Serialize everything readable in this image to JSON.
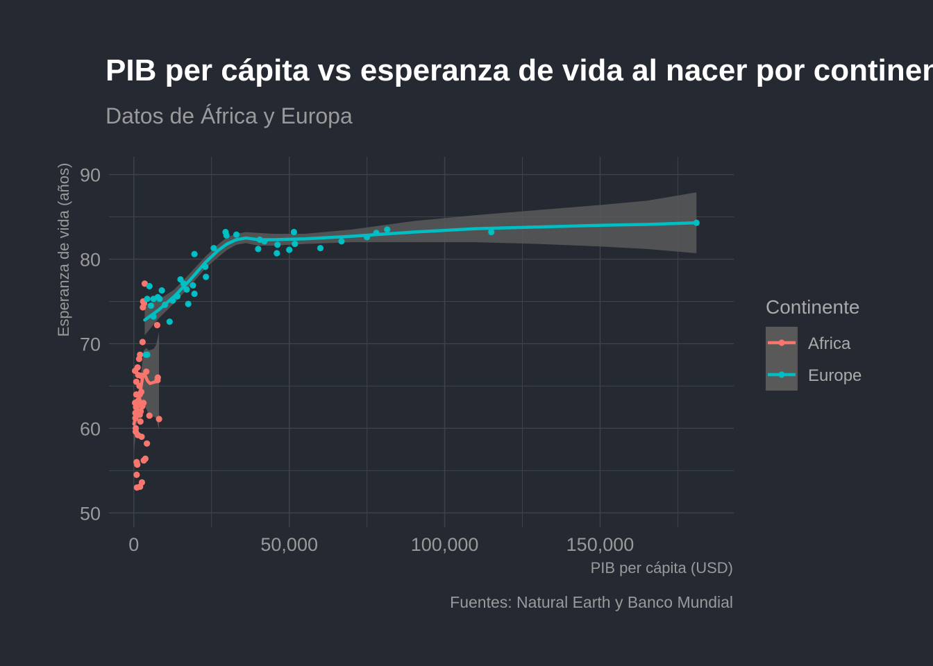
{
  "chart_data": {
    "type": "scatter",
    "title": "PIB per cápita vs esperanza de vida al nacer por continente",
    "subtitle": "Datos de África y Europa",
    "xlabel": "PIB per cápita  (USD)",
    "ylabel": "Esperanza de vida (años)",
    "caption": "Fuentes: Natural Earth y Banco Mundial",
    "xlim": [
      -8000,
      193000
    ],
    "ylim": [
      48.3,
      92.1
    ],
    "x_ticks": [
      0,
      50000,
      100000,
      150000
    ],
    "x_tick_labels": [
      "0",
      "50,000",
      "100,000",
      "150,000"
    ],
    "y_ticks": [
      50,
      60,
      70,
      80,
      90
    ],
    "y_tick_labels": [
      "50",
      "60",
      "70",
      "80",
      "90"
    ],
    "grid": true,
    "legend": {
      "title": "Continente",
      "position": "right"
    },
    "colors": {
      "background": "#252932",
      "grid": "#3e434c",
      "ribbon": "#595959",
      "Africa": "#f8766d",
      "Europe": "#00bfc4"
    },
    "series": [
      {
        "name": "Africa",
        "points": [
          [
            400,
            66.8
          ],
          [
            400,
            63.0
          ],
          [
            500,
            61.8
          ],
          [
            500,
            61.2
          ],
          [
            600,
            60.0
          ],
          [
            600,
            59.6
          ],
          [
            700,
            62.5
          ],
          [
            800,
            65.5
          ],
          [
            800,
            64.0
          ],
          [
            900,
            56.0
          ],
          [
            900,
            54.5
          ],
          [
            1000,
            53.0
          ],
          [
            1100,
            55.7
          ],
          [
            1200,
            67.2
          ],
          [
            1300,
            63.2
          ],
          [
            1300,
            59.2
          ],
          [
            1400,
            66.3
          ],
          [
            1500,
            63.3
          ],
          [
            1600,
            62.8
          ],
          [
            1700,
            68.2
          ],
          [
            1800,
            65.0
          ],
          [
            1900,
            64.0
          ],
          [
            1900,
            61.6
          ],
          [
            2000,
            68.7
          ],
          [
            2000,
            53.1
          ],
          [
            2100,
            60.8
          ],
          [
            2200,
            62.0
          ],
          [
            2300,
            66.2
          ],
          [
            2400,
            64.3
          ],
          [
            2500,
            59.0
          ],
          [
            2600,
            53.6
          ],
          [
            2700,
            62.6
          ],
          [
            2800,
            70.2
          ],
          [
            2900,
            74.3
          ],
          [
            3000,
            75.0
          ],
          [
            3100,
            63.0
          ],
          [
            3200,
            56.2
          ],
          [
            3300,
            74.8
          ],
          [
            3500,
            77.1
          ],
          [
            3700,
            56.4
          ],
          [
            4000,
            66.7
          ],
          [
            4200,
            58.2
          ],
          [
            5000,
            61.5
          ],
          [
            7500,
            72.2
          ],
          [
            7600,
            65.7
          ],
          [
            7700,
            66.0
          ],
          [
            8100,
            61.1
          ]
        ],
        "smooth": [
          [
            0,
            60.5
          ],
          [
            800,
            61.6
          ],
          [
            1600,
            63.1
          ],
          [
            2400,
            65.1
          ],
          [
            3000,
            66.4
          ],
          [
            3600,
            66.3
          ],
          [
            4400,
            65.6
          ],
          [
            5200,
            65.3
          ],
          [
            6000,
            65.4
          ],
          [
            7000,
            65.5
          ],
          [
            8100,
            65.6
          ]
        ],
        "ribbon": [
          [
            0,
            57.0,
            63.7
          ],
          [
            800,
            60.3,
            63.0
          ],
          [
            1600,
            62.0,
            64.3
          ],
          [
            2400,
            63.4,
            66.8
          ],
          [
            3200,
            63.0,
            69.2
          ],
          [
            4000,
            62.3,
            69.5
          ],
          [
            4800,
            61.6,
            69.2
          ],
          [
            5600,
            61.2,
            69.3
          ],
          [
            6400,
            61.4,
            69.4
          ],
          [
            7200,
            61.2,
            69.9
          ],
          [
            8100,
            59.8,
            71.4
          ]
        ]
      },
      {
        "name": "Europe",
        "points": [
          [
            3900,
            68.7
          ],
          [
            4300,
            75.3
          ],
          [
            4300,
            68.7
          ],
          [
            5000,
            76.8
          ],
          [
            5500,
            74.5
          ],
          [
            6300,
            73.2
          ],
          [
            6300,
            75.3
          ],
          [
            7700,
            75.5
          ],
          [
            8300,
            75.3
          ],
          [
            9000,
            76.3
          ],
          [
            10000,
            74.6
          ],
          [
            11500,
            72.6
          ],
          [
            12500,
            75.1
          ],
          [
            14000,
            75.6
          ],
          [
            15000,
            77.6
          ],
          [
            16000,
            77.1
          ],
          [
            17000,
            76.4
          ],
          [
            17500,
            74.7
          ],
          [
            19000,
            76.9
          ],
          [
            19500,
            80.6
          ],
          [
            19500,
            75.9
          ],
          [
            23000,
            79.1
          ],
          [
            23200,
            77.9
          ],
          [
            25700,
            81.3
          ],
          [
            29500,
            83.2
          ],
          [
            29800,
            82.8
          ],
          [
            33000,
            82.9
          ],
          [
            40000,
            81.2
          ],
          [
            40500,
            82.3
          ],
          [
            42000,
            82.1
          ],
          [
            46000,
            80.7
          ],
          [
            46200,
            81.7
          ],
          [
            50000,
            81.1
          ],
          [
            51500,
            83.2
          ],
          [
            51800,
            81.8
          ],
          [
            60000,
            81.3
          ],
          [
            66800,
            82.1
          ],
          [
            75000,
            82.6
          ],
          [
            78000,
            83.1
          ],
          [
            81500,
            83.5
          ],
          [
            115000,
            83.2
          ],
          [
            181000,
            84.3
          ]
        ],
        "smooth": [
          [
            3500,
            72.8
          ],
          [
            8000,
            74.0
          ],
          [
            13000,
            75.6
          ],
          [
            18000,
            77.5
          ],
          [
            23000,
            79.6
          ],
          [
            27000,
            81.0
          ],
          [
            30000,
            81.8
          ],
          [
            33000,
            82.3
          ],
          [
            36000,
            82.5
          ],
          [
            40000,
            82.3
          ],
          [
            45000,
            82.3
          ],
          [
            55000,
            82.4
          ],
          [
            70000,
            82.7
          ],
          [
            90000,
            83.2
          ],
          [
            110000,
            83.6
          ],
          [
            130000,
            83.8
          ],
          [
            150000,
            84.0
          ],
          [
            165000,
            84.1
          ],
          [
            181000,
            84.3
          ]
        ],
        "ribbon": [
          [
            3500,
            71.0,
            74.6
          ],
          [
            8000,
            73.0,
            75.2
          ],
          [
            13000,
            74.8,
            76.4
          ],
          [
            18000,
            76.8,
            78.3
          ],
          [
            23000,
            78.9,
            80.3
          ],
          [
            27000,
            80.2,
            81.7
          ],
          [
            30000,
            81.1,
            82.6
          ],
          [
            33000,
            81.7,
            83.0
          ],
          [
            36000,
            81.9,
            83.2
          ],
          [
            40000,
            81.6,
            83.1
          ],
          [
            45000,
            81.6,
            83.0
          ],
          [
            55000,
            81.8,
            83.0
          ],
          [
            70000,
            82.0,
            83.5
          ],
          [
            90000,
            82.0,
            84.5
          ],
          [
            110000,
            82.0,
            85.2
          ],
          [
            130000,
            81.8,
            85.8
          ],
          [
            150000,
            81.5,
            86.4
          ],
          [
            165000,
            81.2,
            86.9
          ],
          [
            181000,
            80.7,
            87.9
          ]
        ]
      }
    ]
  }
}
